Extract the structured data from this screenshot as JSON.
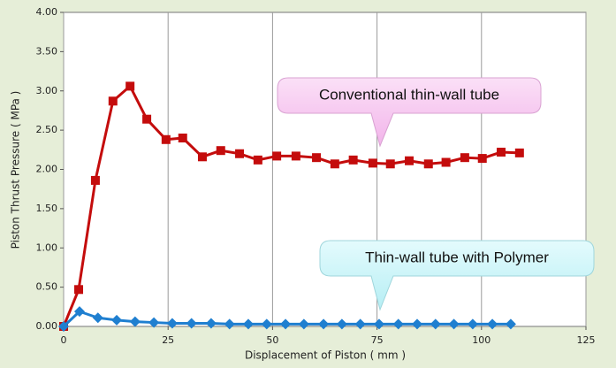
{
  "chart_data": {
    "type": "line",
    "x_label": "Displacement of Piston ( mm )",
    "y_label": "Piston Thrust Pressure ( MPa )",
    "xlim": [
      0,
      125
    ],
    "xticks": [
      0,
      25,
      50,
      75,
      100,
      125
    ],
    "ylim": [
      0,
      4
    ],
    "yticks": [
      {
        "value": 0,
        "label": "0.00"
      },
      {
        "value": 0.5,
        "label": "0.50"
      },
      {
        "value": 1,
        "label": "1.00"
      },
      {
        "value": 1.5,
        "label": "1.50"
      },
      {
        "value": 2,
        "label": "2.00"
      },
      {
        "value": 2.5,
        "label": "2.50"
      },
      {
        "value": 3,
        "label": "3.00"
      },
      {
        "value": 3.5,
        "label": "3.50"
      },
      {
        "value": 4,
        "label": "4.00"
      }
    ],
    "grid": "x",
    "series": [
      {
        "name": "Conventional thin-wall tube",
        "color": "#c40c0c",
        "marker": "square",
        "x": [
          0,
          3.6,
          7.6,
          11.8,
          15.9,
          19.9,
          24.5,
          28.5,
          33.2,
          37.6,
          42.1,
          46.5,
          51.0,
          55.6,
          60.5,
          64.9,
          69.3,
          74.0,
          78.2,
          82.7,
          87.3,
          91.5,
          96.0,
          100.2,
          104.7,
          109.1
        ],
        "values": [
          0,
          0.47,
          1.86,
          2.87,
          3.06,
          2.64,
          2.38,
          2.4,
          2.16,
          2.24,
          2.2,
          2.12,
          2.17,
          2.17,
          2.15,
          2.07,
          2.12,
          2.08,
          2.07,
          2.11,
          2.07,
          2.09,
          2.15,
          2.14,
          2.22,
          2.21
        ]
      },
      {
        "name": "Thin-wall tube with Polymer",
        "color": "#1f7fd0",
        "marker": "diamond",
        "x": [
          0,
          3.8,
          8.2,
          12.7,
          17.1,
          21.6,
          26.0,
          30.6,
          35.3,
          39.7,
          44.2,
          48.6,
          53.1,
          57.5,
          62.2,
          66.6,
          71.0,
          75.5,
          80.1,
          84.6,
          89.0,
          93.4,
          97.9,
          102.6,
          107.0
        ],
        "values": [
          0,
          0.19,
          0.11,
          0.08,
          0.06,
          0.05,
          0.04,
          0.04,
          0.04,
          0.03,
          0.03,
          0.03,
          0.03,
          0.03,
          0.03,
          0.03,
          0.03,
          0.03,
          0.03,
          0.03,
          0.03,
          0.03,
          0.03,
          0.03,
          0.03
        ]
      }
    ]
  }
}
